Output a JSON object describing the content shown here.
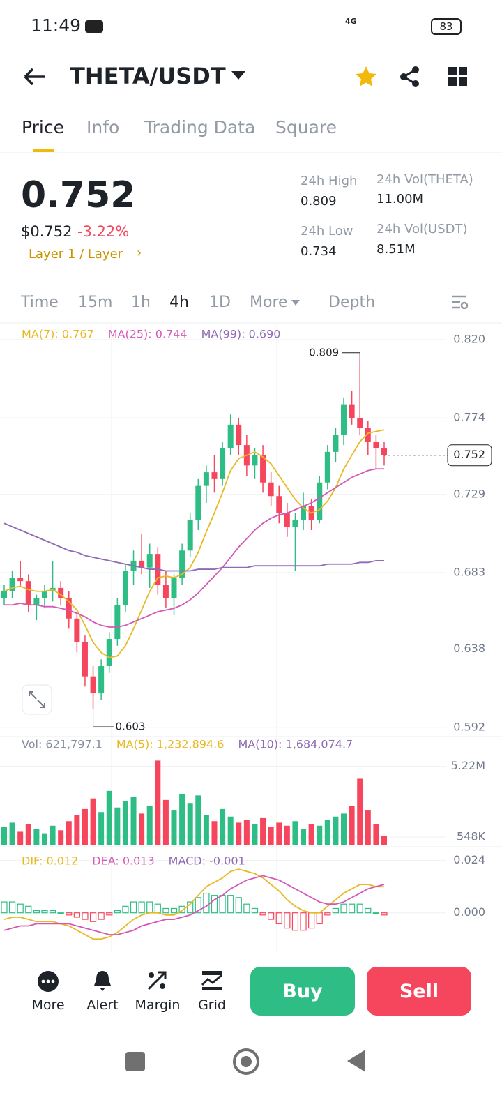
{
  "status_bar": {
    "time": "11:49",
    "network": "4G",
    "battery": "83"
  },
  "header": {
    "pair": "THETA/USDT"
  },
  "tabs": [
    "Price",
    "Info",
    "Trading Data",
    "Square"
  ],
  "ticker": {
    "price": "0.752",
    "usd_price": "$0.752",
    "change": "-3.22%",
    "category": "Layer 1 / Layer",
    "stats": [
      {
        "label": "24h High",
        "value": "0.809"
      },
      {
        "label": "24h Vol(THETA)",
        "value": "11.00M"
      },
      {
        "label": "24h Low",
        "value": "0.734"
      },
      {
        "label": "24h Vol(USDT)",
        "value": "8.51M"
      }
    ]
  },
  "intervals": [
    "Time",
    "15m",
    "1h",
    "4h",
    "1D",
    "More",
    "Depth"
  ],
  "chart_data": {
    "type": "candlestick",
    "ylim": [
      0.587,
      0.829
    ],
    "yticks": [
      {
        "value": 0.82,
        "label": "0.820"
      },
      0.774,
      0.729,
      0.683,
      0.638,
      0.592
    ],
    "up_color": "#2ebd85",
    "down_color": "#f6465d",
    "candles": [
      [
        0.668,
        0.676,
        0.664,
        0.672
      ],
      [
        0.672,
        0.684,
        0.668,
        0.68
      ],
      [
        0.68,
        0.69,
        0.675,
        0.678
      ],
      [
        0.678,
        0.682,
        0.66,
        0.664
      ],
      [
        0.664,
        0.67,
        0.655,
        0.668
      ],
      [
        0.668,
        0.676,
        0.662,
        0.672
      ],
      [
        0.672,
        0.69,
        0.666,
        0.674
      ],
      [
        0.674,
        0.678,
        0.664,
        0.668
      ],
      [
        0.668,
        0.672,
        0.65,
        0.656
      ],
      [
        0.656,
        0.66,
        0.636,
        0.642
      ],
      [
        0.642,
        0.646,
        0.616,
        0.622
      ],
      [
        0.622,
        0.628,
        0.603,
        0.612
      ],
      [
        0.612,
        0.632,
        0.608,
        0.628
      ],
      [
        0.628,
        0.648,
        0.624,
        0.644
      ],
      [
        0.644,
        0.668,
        0.64,
        0.664
      ],
      [
        0.664,
        0.688,
        0.66,
        0.684
      ],
      [
        0.684,
        0.696,
        0.676,
        0.69
      ],
      [
        0.69,
        0.706,
        0.682,
        0.686
      ],
      [
        0.686,
        0.7,
        0.674,
        0.694
      ],
      [
        0.694,
        0.698,
        0.67,
        0.676
      ],
      [
        0.676,
        0.684,
        0.662,
        0.668
      ],
      [
        0.668,
        0.682,
        0.658,
        0.68
      ],
      [
        0.68,
        0.7,
        0.676,
        0.696
      ],
      [
        0.696,
        0.718,
        0.692,
        0.714
      ],
      [
        0.714,
        0.738,
        0.708,
        0.734
      ],
      [
        0.734,
        0.746,
        0.724,
        0.742
      ],
      [
        0.742,
        0.752,
        0.73,
        0.738
      ],
      [
        0.738,
        0.76,
        0.734,
        0.756
      ],
      [
        0.756,
        0.776,
        0.752,
        0.77
      ],
      [
        0.77,
        0.774,
        0.752,
        0.758
      ],
      [
        0.758,
        0.764,
        0.74,
        0.746
      ],
      [
        0.746,
        0.756,
        0.738,
        0.752
      ],
      [
        0.752,
        0.758,
        0.73,
        0.736
      ],
      [
        0.736,
        0.742,
        0.722,
        0.728
      ],
      [
        0.728,
        0.734,
        0.712,
        0.718
      ],
      [
        0.718,
        0.724,
        0.704,
        0.71
      ],
      [
        0.71,
        0.718,
        0.684,
        0.714
      ],
      [
        0.714,
        0.73,
        0.708,
        0.722
      ],
      [
        0.722,
        0.726,
        0.708,
        0.714
      ],
      [
        0.714,
        0.74,
        0.712,
        0.736
      ],
      [
        0.736,
        0.758,
        0.732,
        0.754
      ],
      [
        0.754,
        0.768,
        0.748,
        0.764
      ],
      [
        0.764,
        0.786,
        0.758,
        0.782
      ],
      [
        0.782,
        0.79,
        0.77,
        0.774
      ],
      [
        0.774,
        0.809,
        0.764,
        0.768
      ],
      [
        0.768,
        0.772,
        0.752,
        0.76
      ],
      [
        0.76,
        0.764,
        0.744,
        0.756
      ],
      [
        0.756,
        0.76,
        0.746,
        0.752
      ]
    ],
    "series": [
      {
        "name": "MA(7): 0.767",
        "color": "#e8b923",
        "values": [
          0.672,
          0.674,
          0.675,
          0.673,
          0.672,
          0.672,
          0.673,
          0.67,
          0.666,
          0.661,
          0.652,
          0.642,
          0.636,
          0.633,
          0.634,
          0.64,
          0.65,
          0.661,
          0.672,
          0.68,
          0.681,
          0.68,
          0.682,
          0.686,
          0.695,
          0.707,
          0.718,
          0.73,
          0.743,
          0.75,
          0.752,
          0.754,
          0.751,
          0.747,
          0.74,
          0.733,
          0.726,
          0.721,
          0.718,
          0.72,
          0.725,
          0.733,
          0.744,
          0.752,
          0.76,
          0.765,
          0.766,
          0.767
        ]
      },
      {
        "name": "MA(25): 0.744",
        "color": "#d458b8",
        "values": [
          0.664,
          0.664,
          0.665,
          0.664,
          0.664,
          0.663,
          0.663,
          0.662,
          0.661,
          0.659,
          0.657,
          0.654,
          0.652,
          0.651,
          0.651,
          0.652,
          0.654,
          0.656,
          0.658,
          0.66,
          0.661,
          0.662,
          0.664,
          0.667,
          0.671,
          0.676,
          0.681,
          0.686,
          0.692,
          0.698,
          0.703,
          0.708,
          0.712,
          0.715,
          0.717,
          0.718,
          0.72,
          0.722,
          0.724,
          0.727,
          0.73,
          0.733,
          0.736,
          0.739,
          0.741,
          0.743,
          0.744,
          0.744
        ]
      },
      {
        "name": "MA(99): 0.690",
        "color": "#8e6bb4",
        "values": [
          0.712,
          0.71,
          0.708,
          0.706,
          0.704,
          0.702,
          0.7,
          0.698,
          0.696,
          0.695,
          0.693,
          0.692,
          0.691,
          0.69,
          0.689,
          0.688,
          0.687,
          0.686,
          0.685,
          0.685,
          0.684,
          0.684,
          0.684,
          0.684,
          0.685,
          0.685,
          0.685,
          0.686,
          0.686,
          0.686,
          0.686,
          0.687,
          0.687,
          0.687,
          0.687,
          0.687,
          0.687,
          0.687,
          0.687,
          0.687,
          0.688,
          0.688,
          0.688,
          0.688,
          0.689,
          0.689,
          0.69,
          0.69
        ]
      }
    ],
    "last_price": 0.752,
    "annotations": [
      0.809,
      0.603
    ],
    "volume": {
      "legend": [
        "Vol: 621,797.1",
        "MA(5): 1,232,894.6",
        "MA(10): 1,684,074.7"
      ],
      "legend_colors": [
        "#848e9c",
        "#e8b923",
        "#8e6bb4"
      ],
      "ylim": [
        0,
        7000000
      ],
      "yticks": [
        {
          "value": 5220000,
          "label": "5.22M"
        },
        {
          "value": 548000,
          "label": "548K"
        }
      ],
      "values": [
        1200000,
        1500000,
        900000,
        1400000,
        1100000,
        800000,
        1300000,
        1000000,
        1600000,
        2000000,
        2400000,
        3100000,
        2200000,
        3600000,
        2500000,
        2900000,
        3200000,
        2100000,
        2600000,
        5600000,
        3000000,
        2300000,
        3400000,
        2800000,
        3300000,
        2000000,
        1600000,
        2400000,
        1900000,
        1500000,
        1700000,
        1400000,
        1800000,
        1200000,
        1500000,
        1300000,
        1600000,
        1100000,
        1400000,
        1300000,
        1700000,
        1900000,
        2100000,
        2600000,
        4400000,
        2300000,
        1400000,
        621797.1
      ]
    },
    "macd": {
      "legend": [
        "DIF: 0.012",
        "DEA: 0.013",
        "MACD: -0.001"
      ],
      "ylim": [
        -0.018,
        0.029
      ],
      "yticks": [
        0.024,
        {
          "value": 0,
          "label": "0.000"
        }
      ],
      "series": [
        {
          "name": "DIF",
          "color": "#e8b923",
          "values": [
            -0.003,
            -0.002,
            -0.002,
            -0.003,
            -0.004,
            -0.004,
            -0.004,
            -0.005,
            -0.006,
            -0.008,
            -0.01,
            -0.012,
            -0.012,
            -0.011,
            -0.009,
            -0.006,
            -0.003,
            -0.001,
            0,
            0,
            -0.001,
            -0.001,
            0.001,
            0.004,
            0.008,
            0.012,
            0.014,
            0.016,
            0.019,
            0.02,
            0.019,
            0.018,
            0.016,
            0.013,
            0.01,
            0.006,
            0.003,
            0.001,
            0,
            0,
            0.003,
            0.006,
            0.009,
            0.011,
            0.013,
            0.013,
            0.012,
            0.012
          ]
        },
        {
          "name": "DEA",
          "color": "#d458b8",
          "values": [
            -0.008,
            -0.007,
            -0.006,
            -0.006,
            -0.005,
            -0.005,
            -0.005,
            -0.005,
            -0.005,
            -0.006,
            -0.007,
            -0.008,
            -0.009,
            -0.01,
            -0.01,
            -0.009,
            -0.008,
            -0.006,
            -0.005,
            -0.004,
            -0.003,
            -0.003,
            -0.002,
            -0.001,
            0.001,
            0.003,
            0.006,
            0.008,
            0.011,
            0.013,
            0.015,
            0.016,
            0.017,
            0.016,
            0.015,
            0.013,
            0.011,
            0.009,
            0.007,
            0.005,
            0.004,
            0.004,
            0.005,
            0.007,
            0.009,
            0.011,
            0.012,
            0.013
          ]
        }
      ],
      "histogram": [
        0.005,
        0.005,
        0.004,
        0.003,
        0.001,
        0.001,
        0.001,
        0,
        -0.001,
        -0.002,
        -0.003,
        -0.004,
        -0.003,
        -0.001,
        0.001,
        0.003,
        0.005,
        0.005,
        0.005,
        0.004,
        0.002,
        0.002,
        0.003,
        0.005,
        0.007,
        0.009,
        0.008,
        0.008,
        0.008,
        0.007,
        0.004,
        0.002,
        -0.001,
        -0.003,
        -0.005,
        -0.007,
        -0.008,
        -0.008,
        -0.007,
        -0.005,
        -0.001,
        0.002,
        0.004,
        0.004,
        0.004,
        0.002,
        0,
        -0.001
      ]
    }
  },
  "bottom_bar": {
    "tools": [
      "More",
      "Alert",
      "Margin",
      "Grid"
    ],
    "buy": "Buy",
    "sell": "Sell"
  }
}
